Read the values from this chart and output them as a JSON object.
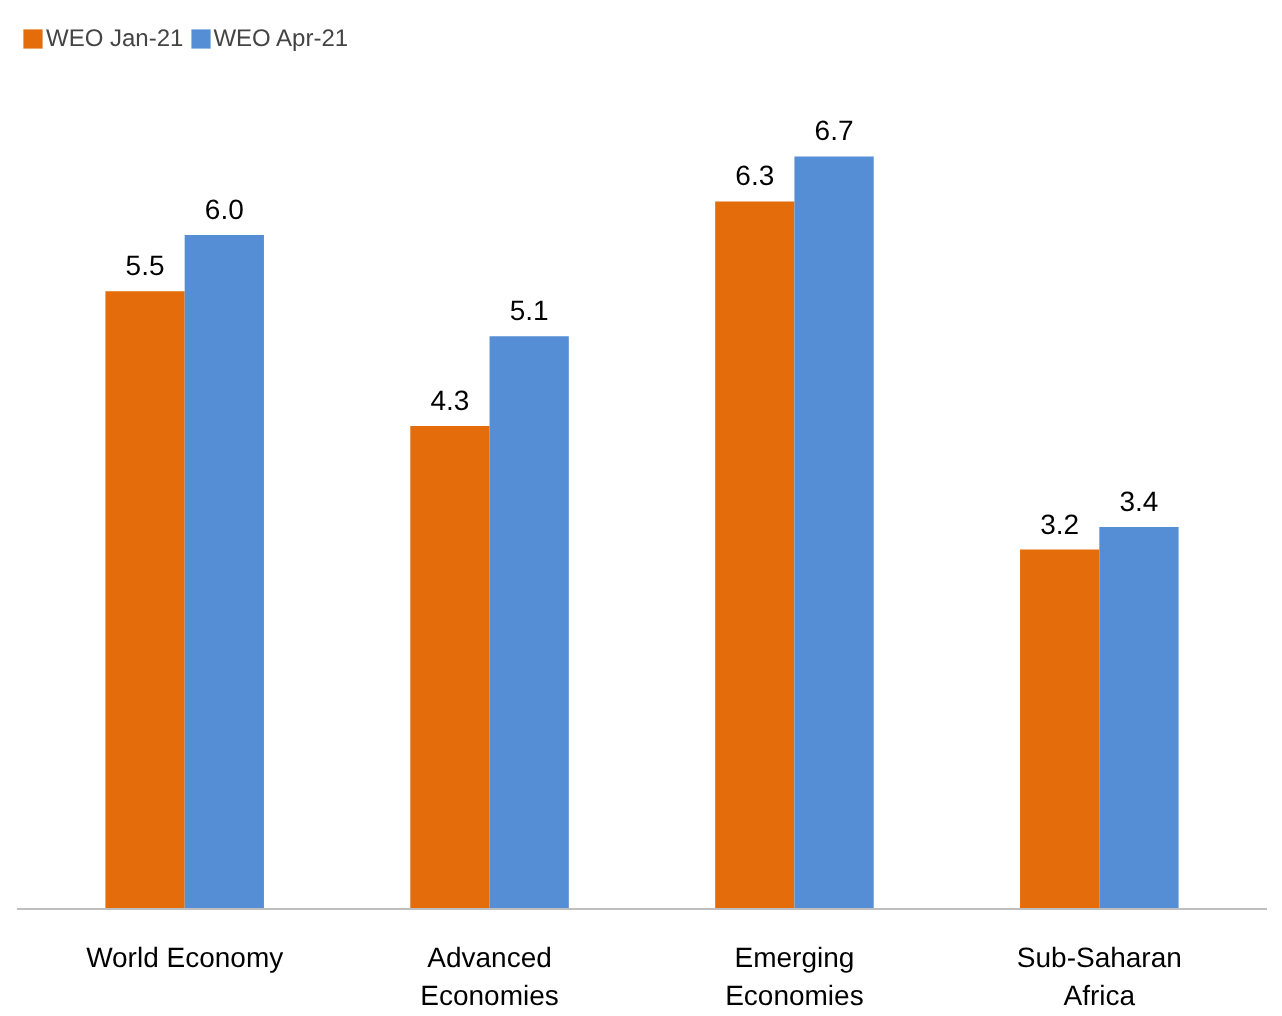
{
  "chart_data": {
    "type": "bar",
    "categories": [
      "World Economy",
      "Advanced Economies",
      "Emerging Economies",
      "Sub-Saharan Africa"
    ],
    "series": [
      {
        "name": "WEO Jan-21",
        "color": "#e46c0a",
        "values": [
          5.5,
          4.3,
          6.3,
          3.2
        ],
        "value_labels": [
          "5.5",
          "4.3",
          "6.3",
          "3.2"
        ]
      },
      {
        "name": "WEO Apr-21",
        "color": "#558ed5",
        "values": [
          6.0,
          5.1,
          6.7,
          3.4
        ],
        "value_labels": [
          "6.0",
          "5.1",
          "6.7",
          "3.4"
        ]
      }
    ],
    "legend": "top left",
    "tick_labels": "x"
  }
}
